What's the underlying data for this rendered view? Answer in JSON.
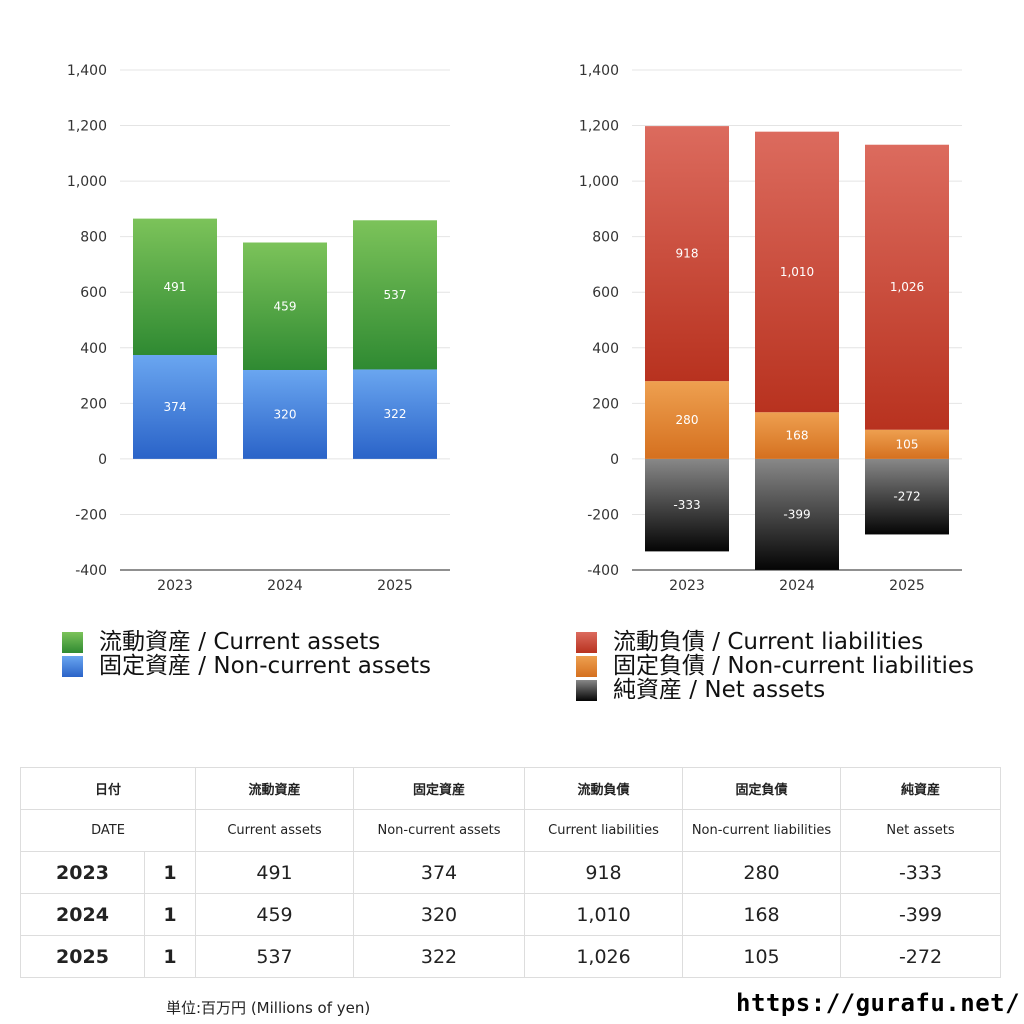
{
  "chart_data": [
    {
      "type": "bar",
      "stacked": true,
      "categories": [
        "2023",
        "2024",
        "2025"
      ],
      "series": [
        {
          "name": "流動資産 / Current assets",
          "values": [
            491,
            459,
            537
          ],
          "colorTop": "#7cc35a",
          "colorBottom": "#2f8a32"
        },
        {
          "name": "固定資産 / Non-current assets",
          "values": [
            374,
            320,
            322
          ],
          "colorTop": "#6aa6f0",
          "colorBottom": "#2a63c8"
        }
      ],
      "ylim": [
        -400,
        1400
      ],
      "yticks": [
        -400,
        -200,
        0,
        200,
        400,
        600,
        800,
        1000,
        1200,
        1400
      ],
      "grid": true,
      "legend": "bottom"
    },
    {
      "type": "bar",
      "stacked": true,
      "categories": [
        "2023",
        "2024",
        "2025"
      ],
      "series": [
        {
          "name": "流動負債 / Current liabilities",
          "values": [
            918,
            1010,
            1026
          ],
          "colorTop": "#dc6b5e",
          "colorBottom": "#b8321f"
        },
        {
          "name": "固定負債 / Non-current liabilities",
          "values": [
            280,
            168,
            105
          ],
          "colorTop": "#eea050",
          "colorBottom": "#d5701f"
        },
        {
          "name": "純資産 / Net assets",
          "values": [
            -333,
            -399,
            -272
          ],
          "colorTop": "#888888",
          "colorBottom": "#050505"
        }
      ],
      "ylim": [
        -400,
        1400
      ],
      "yticks": [
        -400,
        -200,
        0,
        200,
        400,
        600,
        800,
        1000,
        1200,
        1400
      ],
      "grid": true,
      "legend": "bottom"
    }
  ],
  "table": {
    "header_jp": [
      "日付",
      "流動資産",
      "固定資産",
      "流動負債",
      "固定負債",
      "純資産"
    ],
    "header_en": [
      "DATE",
      "Current assets",
      "Non-current assets",
      "Current liabilities",
      "Non-current liabilities",
      "Net assets"
    ],
    "rows": [
      {
        "year": "2023",
        "count": "1",
        "values": [
          "491",
          "374",
          "918",
          "280",
          "-333"
        ]
      },
      {
        "year": "2024",
        "count": "1",
        "values": [
          "459",
          "320",
          "1,010",
          "168",
          "-399"
        ]
      },
      {
        "year": "2025",
        "count": "1",
        "values": [
          "537",
          "322",
          "1,026",
          "105",
          "-272"
        ]
      }
    ]
  },
  "footer": {
    "unit": "単位:百万円 (Millions of yen)",
    "site": "https://gurafu.net/"
  }
}
